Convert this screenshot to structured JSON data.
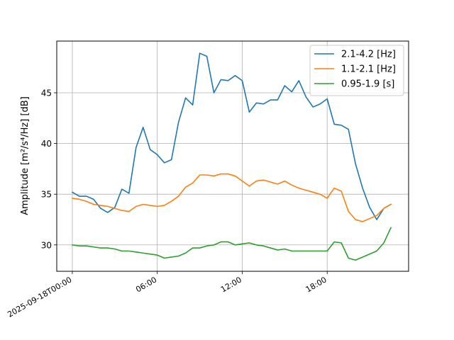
{
  "chart_data": {
    "type": "line",
    "ylabel": "Amplitude [m²/s⁴/Hz] [dB]",
    "xlabel": "",
    "title": "",
    "x_ticks": [
      "2025-09-18T00:00",
      "06:00",
      "12:00",
      "18:00"
    ],
    "x_tick_hours": [
      0,
      6,
      12,
      18
    ],
    "xlim_hours": [
      -1.1,
      23.75
    ],
    "y_ticks": [
      30,
      35,
      40,
      45
    ],
    "ylim": [
      27.4,
      50.1
    ],
    "grid": true,
    "legend_position": "top-right",
    "series": [
      {
        "name": "2.1-4.2 [Hz]",
        "color": "#1f77b4",
        "x": [
          0,
          0.5,
          1,
          1.5,
          2,
          2.5,
          3,
          3.5,
          4,
          4.5,
          5,
          5.5,
          6,
          6.5,
          7,
          7.5,
          8,
          8.5,
          9,
          9.5,
          10,
          10.5,
          11,
          11.5,
          12,
          12.5,
          13,
          13.5,
          14,
          14.5,
          15,
          15.5,
          16,
          16.5,
          17,
          17.5,
          18,
          18.5,
          19,
          19.5,
          20,
          20.5,
          21,
          21.5,
          22,
          22.5
        ],
        "y": [
          35.2,
          34.8,
          34.8,
          34.5,
          33.6,
          33.2,
          33.7,
          35.5,
          35.1,
          39.6,
          41.6,
          39.4,
          38.9,
          38.1,
          38.4,
          42.1,
          44.5,
          43.8,
          48.9,
          48.6,
          45.0,
          46.3,
          46.2,
          46.7,
          46.2,
          43.1,
          44.0,
          43.9,
          44.3,
          44.3,
          45.7,
          45.1,
          46.2,
          44.6,
          43.6,
          43.9,
          44.4,
          41.9,
          41.8,
          41.4,
          38.0,
          35.6,
          33.7,
          32.5,
          33.6,
          34.0
        ]
      },
      {
        "name": "1.1-2.1 [Hz]",
        "color": "#ff7f0e",
        "x": [
          0,
          0.5,
          1,
          1.5,
          2,
          2.5,
          3,
          3.5,
          4,
          4.5,
          5,
          5.5,
          6,
          6.5,
          7,
          7.5,
          8,
          8.5,
          9,
          9.5,
          10,
          10.5,
          11,
          11.5,
          12,
          12.5,
          13,
          13.5,
          14,
          14.5,
          15,
          15.5,
          16,
          16.5,
          17,
          17.5,
          18,
          18.5,
          19,
          19.5,
          20,
          20.5,
          21,
          21.5,
          22,
          22.5
        ],
        "y": [
          34.6,
          34.5,
          34.3,
          34.0,
          33.9,
          33.8,
          33.6,
          33.4,
          33.3,
          33.8,
          34.0,
          33.9,
          33.8,
          33.9,
          34.3,
          34.8,
          35.7,
          36.1,
          36.9,
          36.9,
          36.8,
          37.0,
          37.0,
          36.8,
          36.3,
          35.8,
          36.3,
          36.4,
          36.2,
          36.0,
          36.3,
          35.9,
          35.6,
          35.4,
          35.2,
          35.0,
          34.6,
          35.6,
          35.3,
          33.3,
          32.5,
          32.3,
          32.6,
          32.9,
          33.6,
          34.0
        ]
      },
      {
        "name": "0.95-1.9 [s]",
        "color": "#2ca02c",
        "x": [
          0,
          0.5,
          1,
          1.5,
          2,
          2.5,
          3,
          3.5,
          4,
          4.5,
          5,
          5.5,
          6,
          6.5,
          7,
          7.5,
          8,
          8.5,
          9,
          9.5,
          10,
          10.5,
          11,
          11.5,
          12,
          12.5,
          13,
          13.5,
          14,
          14.5,
          15,
          15.5,
          16,
          16.5,
          17,
          17.5,
          18,
          18.5,
          19,
          19.5,
          20,
          20.5,
          21,
          21.5,
          22,
          22.5
        ],
        "y": [
          30.0,
          29.9,
          29.9,
          29.8,
          29.7,
          29.7,
          29.6,
          29.4,
          29.4,
          29.3,
          29.2,
          29.1,
          29.0,
          28.7,
          28.8,
          28.9,
          29.2,
          29.7,
          29.7,
          29.9,
          30.0,
          30.3,
          30.3,
          30.0,
          30.1,
          30.2,
          30.0,
          29.9,
          29.7,
          29.5,
          29.6,
          29.4,
          29.4,
          29.4,
          29.4,
          29.4,
          29.4,
          30.3,
          30.2,
          28.7,
          28.5,
          28.8,
          29.1,
          29.4,
          30.2,
          31.7
        ]
      }
    ]
  }
}
